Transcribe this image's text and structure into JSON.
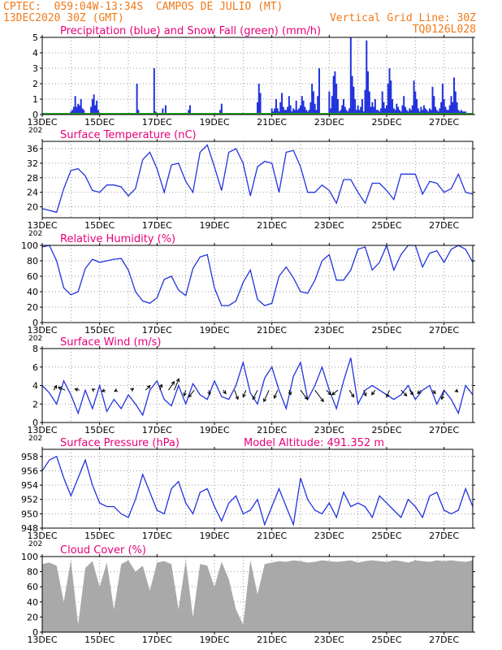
{
  "header": {
    "line1_left": "CPTEC:  059:04W-13:34S  CAMPOS DE JULIO (MT)",
    "line2_left": "13DEC2020 30Z (GMT)",
    "line2_right": "Vertical Grid Line: 30Z",
    "line3_right": "TQ0126L028",
    "color": "#f07a1a"
  },
  "colors": {
    "title": "#e8007a",
    "line": "#2233dd",
    "precip": "#2233dd",
    "snow": "#22aa22",
    "cloud": "#a9a9a9",
    "grid": "#999999",
    "arrow": "#000000"
  },
  "chart_data": [
    {
      "type": "bar",
      "title": "Precipitation (blue) and Snow Fall (green) (mm/h)",
      "x_labels": [
        "13DEC",
        "15DEC",
        "17DEC",
        "19DEC",
        "21DEC",
        "23DEC",
        "25DEC",
        "27DEC"
      ],
      "x_label_clipped": "202",
      "ylim": [
        0,
        5
      ],
      "yticks": [
        "0",
        "1",
        "2",
        "3",
        "4",
        "5"
      ],
      "x_days": [
        0,
        15
      ],
      "series": [
        {
          "name": "Precipitation",
          "x": [
            1.0,
            1.05,
            1.1,
            1.15,
            1.2,
            1.25,
            1.3,
            1.35,
            1.4,
            1.45,
            1.7,
            1.75,
            1.8,
            1.85,
            1.9,
            1.95,
            3.3,
            3.35,
            3.9,
            3.95,
            4.2,
            4.3,
            5.1,
            5.15,
            6.2,
            6.25,
            7.5,
            7.55,
            7.6,
            8.0,
            8.05,
            8.1,
            8.15,
            8.2,
            8.25,
            8.3,
            8.35,
            8.4,
            8.45,
            8.5,
            8.55,
            8.6,
            8.65,
            8.7,
            8.75,
            8.8,
            8.85,
            8.9,
            8.95,
            9.0,
            9.05,
            9.1,
            9.15,
            9.2,
            9.25,
            9.3,
            9.35,
            9.4,
            9.45,
            9.5,
            9.55,
            9.6,
            9.65,
            10.0,
            10.05,
            10.1,
            10.15,
            10.2,
            10.25,
            10.3,
            10.35,
            10.4,
            10.45,
            10.5,
            10.55,
            10.6,
            10.65,
            10.7,
            10.75,
            10.8,
            10.85,
            10.9,
            10.95,
            11.0,
            11.05,
            11.1,
            11.15,
            11.2,
            11.25,
            11.3,
            11.35,
            11.4,
            11.45,
            11.5,
            11.55,
            11.6,
            11.65,
            11.7,
            11.75,
            11.8,
            11.85,
            11.9,
            11.95,
            12.0,
            12.05,
            12.1,
            12.15,
            12.2,
            12.25,
            12.3,
            12.35,
            12.4,
            12.45,
            12.5,
            12.55,
            12.6,
            12.65,
            12.7,
            12.75,
            12.8,
            12.85,
            12.9,
            12.95,
            13.0,
            13.05,
            13.1,
            13.15,
            13.2,
            13.25,
            13.3,
            13.35,
            13.4,
            13.45,
            13.5,
            13.55,
            13.6,
            13.65,
            13.7,
            13.75,
            13.8,
            13.85,
            13.9,
            13.95,
            14.0,
            14.05,
            14.1,
            14.15,
            14.2,
            14.25,
            14.3,
            14.35,
            14.4,
            14.45,
            14.5,
            14.55,
            14.6,
            14.65,
            14.7,
            14.75
          ],
          "values": [
            0.2,
            0.3,
            0.5,
            1.2,
            0.5,
            0.7,
            0.6,
            1.0,
            0.4,
            0.3,
            0.5,
            1.0,
            1.3,
            0.6,
            0.9,
            0.3,
            2.0,
            0.3,
            3.0,
            0.2,
            0.4,
            0.6,
            0.3,
            0.6,
            0.3,
            0.7,
            0.8,
            2.0,
            1.4,
            0.4,
            0.2,
            0.4,
            1.0,
            0.4,
            0.2,
            0.8,
            1.4,
            0.5,
            0.3,
            0.3,
            0.5,
            1.2,
            0.6,
            0.2,
            0.4,
            0.3,
            0.9,
            0.3,
            0.4,
            0.6,
            1.2,
            0.9,
            0.5,
            0.3,
            0.2,
            0.3,
            0.8,
            2.0,
            1.5,
            0.7,
            0.3,
            1.2,
            3.0,
            1.5,
            0.4,
            1.2,
            2.5,
            2.8,
            2.0,
            1.0,
            0.2,
            0.3,
            0.6,
            1.0,
            0.5,
            0.3,
            0.2,
            0.4,
            5.0,
            2.5,
            1.8,
            1.0,
            0.3,
            0.6,
            0.3,
            0.5,
            1.0,
            0.2,
            1.6,
            4.8,
            2.8,
            1.5,
            0.5,
            0.8,
            0.5,
            1.0,
            0.3,
            0.3,
            0.2,
            0.4,
            1.5,
            0.8,
            0.4,
            0.6,
            2.0,
            3.0,
            2.2,
            1.0,
            0.4,
            0.3,
            0.7,
            0.5,
            0.3,
            0.2,
            0.6,
            1.2,
            0.5,
            0.3,
            0.2,
            0.4,
            0.3,
            0.6,
            2.2,
            1.5,
            1.0,
            0.4,
            0.2,
            0.5,
            0.3,
            0.6,
            0.4,
            0.3,
            0.2,
            0.4,
            0.3,
            1.8,
            1.2,
            0.5,
            0.3,
            0.2,
            0.4,
            0.8,
            2.0,
            1.0,
            0.5,
            0.3,
            0.3,
            0.6,
            1.2,
            0.8,
            2.4,
            1.5,
            0.8,
            0.3,
            0.2,
            0.3,
            0.2,
            0.2,
            0.2
          ]
        },
        {
          "name": "Snow Fall",
          "x": [
            0,
            15
          ],
          "values": [
            0,
            0
          ]
        }
      ]
    },
    {
      "type": "line",
      "title": "Surface Temperature (nC)",
      "x_labels": [
        "13DEC",
        "15DEC",
        "17DEC",
        "19DEC",
        "21DEC",
        "23DEC",
        "25DEC",
        "27DEC"
      ],
      "x_label_clipped": "202",
      "ylim": [
        17,
        38
      ],
      "yticks": [
        "20",
        "24",
        "28",
        "32",
        "36"
      ],
      "ytick_values": [
        20,
        24,
        28,
        32,
        36
      ],
      "x": [
        0,
        0.25,
        0.5,
        0.75,
        1.0,
        1.25,
        1.5,
        1.75,
        2.0,
        2.25,
        2.5,
        2.75,
        3.0,
        3.25,
        3.5,
        3.75,
        4.0,
        4.25,
        4.5,
        4.75,
        5.0,
        5.25,
        5.5,
        5.75,
        6.0,
        6.25,
        6.5,
        6.75,
        7.0,
        7.25,
        7.5,
        7.75,
        8.0,
        8.25,
        8.5,
        8.75,
        9.0,
        9.25,
        9.5,
        9.75,
        10.0,
        10.25,
        10.5,
        10.75,
        11.0,
        11.25,
        11.5,
        11.75,
        12.0,
        12.25,
        12.5,
        12.75,
        13.0,
        13.25,
        13.5,
        13.75,
        14.0,
        14.25,
        14.5,
        14.75,
        15.0
      ],
      "y": [
        19.5,
        19.0,
        18.5,
        25.0,
        30.0,
        30.5,
        28.5,
        24.5,
        24.0,
        26.0,
        26.0,
        25.5,
        23.0,
        25.0,
        33.0,
        35.0,
        30.5,
        24.0,
        31.5,
        32.0,
        27.0,
        24.0,
        35.0,
        37.0,
        31.0,
        24.5,
        35.0,
        36.0,
        32.0,
        23.0,
        31.0,
        32.5,
        32.0,
        24.0,
        35.0,
        35.5,
        31.0,
        24.0,
        24.0,
        26.0,
        24.5,
        21.0,
        27.5,
        27.5,
        24.0,
        21.0,
        26.5,
        26.5,
        24.5,
        22.0,
        29.0,
        29.0,
        29.0,
        23.5,
        27.0,
        26.5,
        24.0,
        25.0,
        29.0,
        24.0,
        23.5
      ]
    },
    {
      "type": "line",
      "title": "Relative Humidity (%)",
      "x_labels": [
        "13DEC",
        "15DEC",
        "17DEC",
        "19DEC",
        "21DEC",
        "23DEC",
        "25DEC",
        "27DEC"
      ],
      "x_label_clipped": "202",
      "ylim": [
        0,
        100
      ],
      "yticks": [
        "0",
        "20",
        "40",
        "60",
        "80",
        "100"
      ],
      "ytick_values": [
        0,
        20,
        40,
        60,
        80,
        100
      ],
      "x": [
        0,
        0.25,
        0.5,
        0.75,
        1.0,
        1.25,
        1.5,
        1.75,
        2.0,
        2.25,
        2.5,
        2.75,
        3.0,
        3.25,
        3.5,
        3.75,
        4.0,
        4.25,
        4.5,
        4.75,
        5.0,
        5.25,
        5.5,
        5.75,
        6.0,
        6.25,
        6.5,
        6.75,
        7.0,
        7.25,
        7.5,
        7.75,
        8.0,
        8.25,
        8.5,
        8.75,
        9.0,
        9.25,
        9.5,
        9.75,
        10.0,
        10.25,
        10.5,
        10.75,
        11.0,
        11.25,
        11.5,
        11.75,
        12.0,
        12.25,
        12.5,
        12.75,
        13.0,
        13.25,
        13.5,
        13.75,
        14.0,
        14.25,
        14.5,
        14.75,
        15.0
      ],
      "y": [
        98,
        100,
        80,
        45,
        36,
        40,
        70,
        82,
        78,
        80,
        82,
        83,
        68,
        40,
        28,
        25,
        32,
        56,
        60,
        42,
        35,
        70,
        85,
        88,
        45,
        22,
        22,
        28,
        52,
        68,
        30,
        22,
        25,
        60,
        72,
        58,
        40,
        38,
        55,
        80,
        88,
        55,
        55,
        68,
        95,
        98,
        68,
        78,
        100,
        68,
        88,
        100,
        100,
        72,
        90,
        93,
        78,
        95,
        100,
        95,
        78
      ]
    },
    {
      "type": "line",
      "title": "Surface Wind (m/s)",
      "x_labels": [
        "13DEC",
        "15DEC",
        "17DEC",
        "19DEC",
        "21DEC",
        "23DEC",
        "25DEC",
        "27DEC"
      ],
      "x_label_clipped": "202",
      "ylim": [
        0,
        8
      ],
      "yticks": [
        "0",
        "2",
        "4",
        "6",
        "8"
      ],
      "ytick_values": [
        0,
        2,
        4,
        6,
        8
      ],
      "x": [
        0,
        0.25,
        0.5,
        0.75,
        1.0,
        1.25,
        1.5,
        1.75,
        2.0,
        2.25,
        2.5,
        2.75,
        3.0,
        3.25,
        3.5,
        3.75,
        4.0,
        4.25,
        4.5,
        4.75,
        5.0,
        5.25,
        5.5,
        5.75,
        6.0,
        6.25,
        6.5,
        6.75,
        7.0,
        7.25,
        7.5,
        7.75,
        8.0,
        8.25,
        8.5,
        8.75,
        9.0,
        9.25,
        9.5,
        9.75,
        10.0,
        10.25,
        10.5,
        10.75,
        11.0,
        11.25,
        11.5,
        11.75,
        12.0,
        12.25,
        12.5,
        12.75,
        13.0,
        13.25,
        13.5,
        13.75,
        14.0,
        14.25,
        14.5,
        14.75,
        15.0
      ],
      "y": [
        4.0,
        3.2,
        2.0,
        4.5,
        3.0,
        1.0,
        3.5,
        1.5,
        4.0,
        1.2,
        2.5,
        1.5,
        3.0,
        2.0,
        0.8,
        3.5,
        4.5,
        2.5,
        1.8,
        4.0,
        2.0,
        4.2,
        3.0,
        2.5,
        4.5,
        2.8,
        2.5,
        4.0,
        6.5,
        3.2,
        2.0,
        4.8,
        6.0,
        3.5,
        1.5,
        5.0,
        6.5,
        2.5,
        4.0,
        6.0,
        3.5,
        1.5,
        4.5,
        7.0,
        2.0,
        3.5,
        4.0,
        3.5,
        3.0,
        2.5,
        3.0,
        4.0,
        2.5,
        3.5,
        4.0,
        2.0,
        3.5,
        2.5,
        1.0,
        4.0,
        3.0
      ],
      "arrows": {
        "x": [
          0.4,
          0.8,
          1.3,
          1.8,
          2.2,
          2.6,
          3.1,
          3.6,
          4.1,
          4.4,
          4.6,
          5.0,
          5.3,
          5.8,
          6.3,
          6.7,
          7.1,
          7.5,
          7.9,
          8.2,
          8.6,
          9.0,
          9.5,
          9.9,
          10.3,
          10.7,
          11.2,
          11.6,
          12.1,
          12.5,
          12.8,
          13.2,
          13.6,
          14.0,
          14.4
        ],
        "u": [
          0.5,
          -1.2,
          -0.8,
          -0.3,
          -0.6,
          -0.4,
          0.4,
          0.8,
          0.3,
          1.0,
          0.8,
          -0.3,
          -1.0,
          0.2,
          0.5,
          0.6,
          -0.5,
          -0.8,
          -0.9,
          -0.6,
          0.3,
          1.2,
          1.5,
          0.8,
          -1.0,
          0.8,
          0.4,
          -0.6,
          -0.5,
          1.0,
          0.6,
          -0.6,
          0.5,
          -0.4,
          0.4
        ],
        "v": [
          0.8,
          0.5,
          0.2,
          0.2,
          -0.2,
          -0.2,
          0.3,
          0.8,
          1.0,
          1.5,
          2.0,
          -1.0,
          -1.2,
          -0.8,
          -0.6,
          -1.6,
          -1.2,
          -1.6,
          -2.0,
          -1.4,
          -0.8,
          -1.6,
          -2.0,
          -0.8,
          -0.8,
          -1.2,
          -1.0,
          -0.8,
          -1.2,
          -1.0,
          -0.8,
          -0.6,
          -0.6,
          -1.6,
          -0.3
        ]
      }
    },
    {
      "type": "line",
      "title": "Surface Pressure (hPa)",
      "annotation": "Model Altitude: 491.352 m",
      "x_labels": [
        "13DEC",
        "15DEC",
        "17DEC",
        "19DEC",
        "21DEC",
        "23DEC",
        "25DEC",
        "27DEC"
      ],
      "x_label_clipped": "202",
      "ylim": [
        948,
        959
      ],
      "yticks": [
        "948",
        "950",
        "952",
        "954",
        "956",
        "958"
      ],
      "ytick_values": [
        948,
        950,
        952,
        954,
        956,
        958
      ],
      "x": [
        0,
        0.25,
        0.5,
        0.75,
        1.0,
        1.25,
        1.5,
        1.75,
        2.0,
        2.25,
        2.5,
        2.75,
        3.0,
        3.25,
        3.5,
        3.75,
        4.0,
        4.25,
        4.5,
        4.75,
        5.0,
        5.25,
        5.5,
        5.75,
        6.0,
        6.25,
        6.5,
        6.75,
        7.0,
        7.25,
        7.5,
        7.75,
        8.0,
        8.25,
        8.5,
        8.75,
        9.0,
        9.25,
        9.5,
        9.75,
        10.0,
        10.25,
        10.5,
        10.75,
        11.0,
        11.25,
        11.5,
        11.75,
        12.0,
        12.25,
        12.5,
        12.75,
        13.0,
        13.25,
        13.5,
        13.75,
        14.0,
        14.25,
        14.5,
        14.75,
        15.0
      ],
      "y": [
        956.0,
        957.5,
        958.0,
        955.0,
        952.5,
        955.0,
        957.5,
        954.0,
        951.5,
        951.0,
        951.0,
        950.0,
        949.5,
        952.0,
        955.5,
        953.0,
        950.5,
        950.0,
        953.5,
        954.5,
        951.5,
        950.0,
        953.0,
        953.5,
        951.0,
        949.0,
        951.5,
        952.5,
        950.0,
        950.5,
        952.0,
        948.5,
        951.0,
        953.5,
        951.0,
        948.5,
        955.0,
        952.0,
        950.5,
        950.0,
        951.5,
        949.5,
        953.0,
        951.0,
        951.5,
        951.0,
        949.5,
        952.5,
        951.5,
        950.5,
        949.5,
        952.0,
        951.0,
        949.5,
        952.5,
        953.0,
        950.5,
        950.0,
        950.5,
        953.5,
        951.0
      ]
    },
    {
      "type": "area",
      "title": "Cloud Cover (%)",
      "x_labels": [
        "13DEC",
        "15DEC",
        "17DEC",
        "19DEC",
        "21DEC",
        "23DEC",
        "25DEC",
        "27DEC"
      ],
      "x_label_clipped": "202",
      "ylim": [
        0,
        100
      ],
      "yticks": [
        "0",
        "20",
        "40",
        "60",
        "80",
        "100"
      ],
      "ytick_values": [
        0,
        20,
        40,
        60,
        80,
        100
      ],
      "x": [
        0,
        0.25,
        0.5,
        0.75,
        1.0,
        1.25,
        1.5,
        1.75,
        2.0,
        2.25,
        2.5,
        2.75,
        3.0,
        3.25,
        3.5,
        3.75,
        4.0,
        4.25,
        4.5,
        4.75,
        5.0,
        5.25,
        5.5,
        5.75,
        6.0,
        6.25,
        6.5,
        6.75,
        7.0,
        7.25,
        7.5,
        7.75,
        8.0,
        8.25,
        8.5,
        8.75,
        9.0,
        9.25,
        9.5,
        9.75,
        10.0,
        10.25,
        10.5,
        10.75,
        11.0,
        11.25,
        11.5,
        11.75,
        12.0,
        12.25,
        12.5,
        12.75,
        13.0,
        13.25,
        13.5,
        13.75,
        14.0,
        14.25,
        14.5,
        14.75,
        15.0
      ],
      "y": [
        90,
        92,
        88,
        40,
        95,
        10,
        85,
        94,
        60,
        92,
        30,
        90,
        95,
        80,
        88,
        55,
        92,
        94,
        90,
        30,
        95,
        20,
        90,
        88,
        60,
        93,
        70,
        30,
        10,
        95,
        50,
        90,
        92,
        94,
        93,
        95,
        94,
        92,
        93,
        95,
        94,
        93,
        94,
        95,
        92,
        94,
        95,
        94,
        93,
        95,
        94,
        92,
        95,
        94,
        93,
        95,
        94,
        95,
        94,
        93,
        95
      ]
    }
  ]
}
